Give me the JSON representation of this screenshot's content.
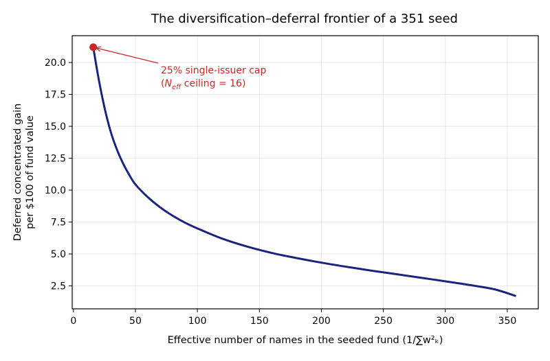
{
  "colors": {
    "curve": "#1a237e",
    "marker": "#c62828",
    "annotation": "#c62828"
  },
  "chart_data": {
    "type": "line",
    "title": "The diversification–deferral frontier of a 351 seed",
    "xlabel": "Effective number of names in the seeded fund  (1/∑w²ₖ)",
    "ylabel_lines": [
      "Deferred concentrated gain",
      "per $100 of fund value"
    ],
    "xlim": [
      -1,
      375
    ],
    "ylim": [
      0.7,
      22.1
    ],
    "x_ticks": [
      0,
      50,
      100,
      150,
      200,
      250,
      300,
      350
    ],
    "y_ticks": [
      2.5,
      5.0,
      7.5,
      10.0,
      12.5,
      15.0,
      17.5,
      20.0
    ],
    "y_tick_labels": [
      "2.5",
      "5.0",
      "7.5",
      "10.0",
      "12.5",
      "15.0",
      "17.5",
      "20.0"
    ],
    "grid": true,
    "series": [
      {
        "x": [
          16,
          20,
          25,
          30,
          35,
          40,
          45,
          50,
          60,
          70,
          80,
          90,
          100,
          120,
          140,
          160,
          180,
          200,
          220,
          240,
          260,
          280,
          300,
          320,
          340,
          357
        ],
        "y": [
          21.2,
          18.9,
          16.5,
          14.6,
          13.2,
          12.1,
          11.2,
          10.45,
          9.45,
          8.65,
          8.0,
          7.45,
          7.0,
          6.2,
          5.58,
          5.08,
          4.68,
          4.32,
          4.0,
          3.7,
          3.42,
          3.14,
          2.86,
          2.56,
          2.22,
          1.7
        ]
      }
    ],
    "annotation": {
      "x": 16,
      "y": 21.2,
      "text_line1": "25% single-issuer cap",
      "text_prefix": "(",
      "text_n": "N",
      "text_sub": "eff",
      "text_suffix": " ceiling = 16)"
    }
  }
}
